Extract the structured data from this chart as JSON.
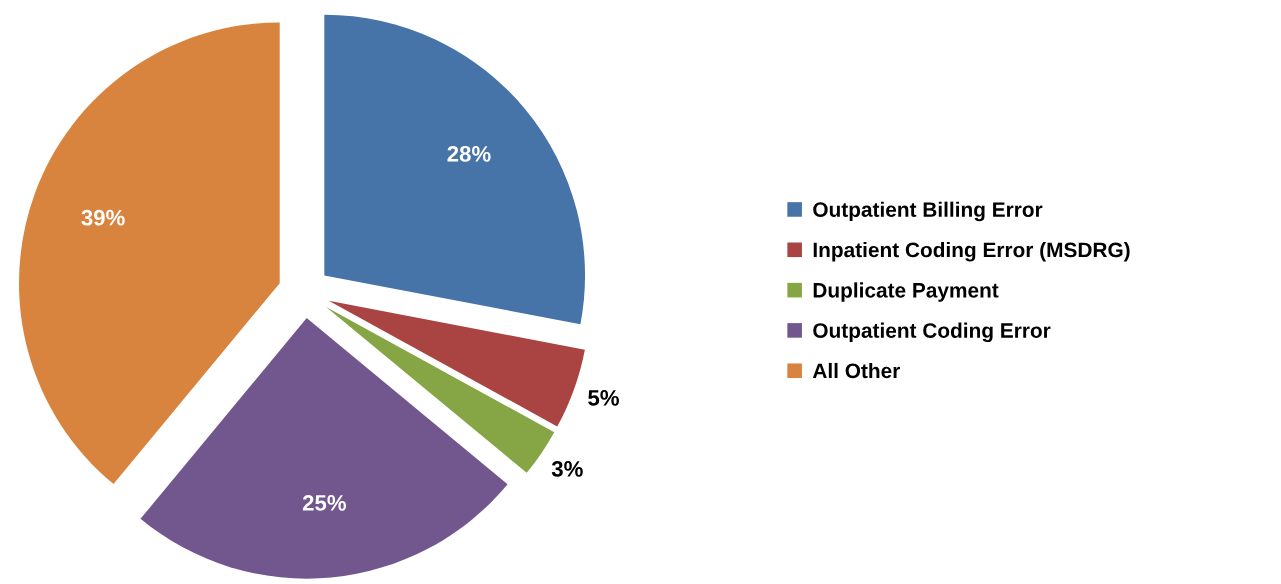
{
  "chart_data": {
    "type": "pie",
    "categories": [
      "Outpatient Billing Error",
      "Inpatient Coding Error (MSDRG)",
      "Duplicate Payment",
      "Outpatient Coding Error",
      "All Other"
    ],
    "values": [
      28,
      5,
      3,
      25,
      39
    ],
    "colors": [
      "#4673a8",
      "#a94442",
      "#86a645",
      "#72578f",
      "#d9843e"
    ],
    "value_labels": [
      "28%",
      "5%",
      "3%",
      "25%",
      "39%"
    ],
    "legend": "right"
  }
}
